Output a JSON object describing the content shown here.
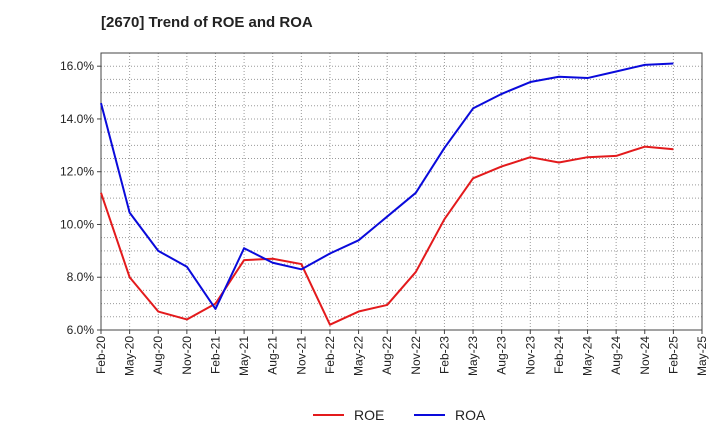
{
  "chart_data": {
    "type": "line",
    "title": "[2670]  Trend of ROE and ROA",
    "xlabel": "",
    "ylabel": "",
    "ylim": [
      6.0,
      16.5
    ],
    "y_ticks": [
      "6.0%",
      "8.0%",
      "10.0%",
      "12.0%",
      "14.0%",
      "16.0%"
    ],
    "y_tick_values": [
      6,
      8,
      10,
      12,
      14,
      16
    ],
    "categories": [
      "Feb-20",
      "May-20",
      "Aug-20",
      "Nov-20",
      "Feb-21",
      "May-21",
      "Aug-21",
      "Nov-21",
      "Feb-22",
      "May-22",
      "Aug-22",
      "Nov-22",
      "Feb-23",
      "May-23",
      "Aug-23",
      "Nov-23",
      "Feb-24",
      "May-24",
      "Aug-24",
      "Nov-24",
      "Feb-25",
      "May-25"
    ],
    "grid": true,
    "legend_placement": "bottom-center",
    "series": [
      {
        "name": "ROE",
        "color": "#e31a1c",
        "values": [
          11.2,
          8.0,
          6.7,
          6.4,
          7.0,
          8.65,
          8.7,
          8.5,
          6.2,
          6.7,
          6.95,
          8.2,
          10.2,
          11.75,
          12.2,
          12.55,
          12.35,
          12.55,
          12.6,
          12.95,
          12.85,
          null
        ]
      },
      {
        "name": "ROA",
        "color": "#0a0adb",
        "values": [
          14.6,
          10.45,
          9.0,
          8.4,
          6.8,
          9.1,
          8.55,
          8.3,
          8.9,
          9.4,
          10.3,
          11.2,
          12.9,
          14.4,
          14.95,
          15.4,
          15.6,
          15.55,
          15.8,
          16.05,
          16.1,
          null
        ]
      }
    ]
  }
}
